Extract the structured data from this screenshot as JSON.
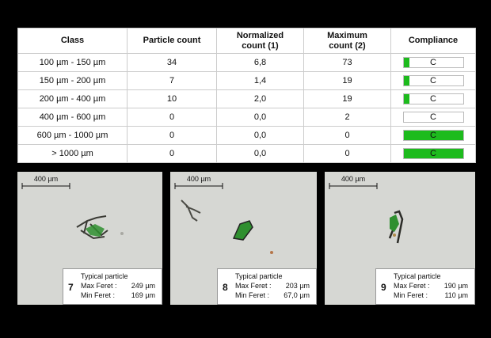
{
  "table": {
    "header": [
      "Class",
      "Particle count",
      "Normalized count (1)",
      "Maximum count (2)",
      "Compliance"
    ],
    "rows": [
      [
        "100 µm - 150 µm",
        34,
        "6,8",
        73,
        "C"
      ],
      [
        "150 µm - 200 µm",
        7,
        "1,4",
        19,
        "C"
      ],
      [
        "200 µm - 400 µm",
        10,
        "2,0",
        19,
        "C"
      ],
      [
        "400 µm - 600 µm",
        0,
        "0,0",
        2,
        "C"
      ],
      [
        "600 µm - 1000 µm",
        0,
        "0,0",
        0,
        "C"
      ],
      [
        "> 1000 µm",
        0,
        "0,0",
        0,
        "C"
      ]
    ]
  },
  "particles": [
    {
      "scale": "400 µm",
      "number": 7,
      "caption": "Typical particle",
      "max_label": "Max Feret :",
      "max": "249 µm",
      "min_label": "Min Feret :",
      "min": "169 µm"
    },
    {
      "scale": "400 µm",
      "number": 8,
      "caption": "Typical particle",
      "max_label": "Max Feret :",
      "max": "203 µm",
      "min_label": "Min Feret :",
      "min": "67,0 µm"
    },
    {
      "scale": "400 µm",
      "number": 9,
      "caption": "Typical particle",
      "max_label": "Max Feret :",
      "max": "190 µm",
      "min_label": "Min Feret :",
      "min": "110 µm"
    }
  ]
}
